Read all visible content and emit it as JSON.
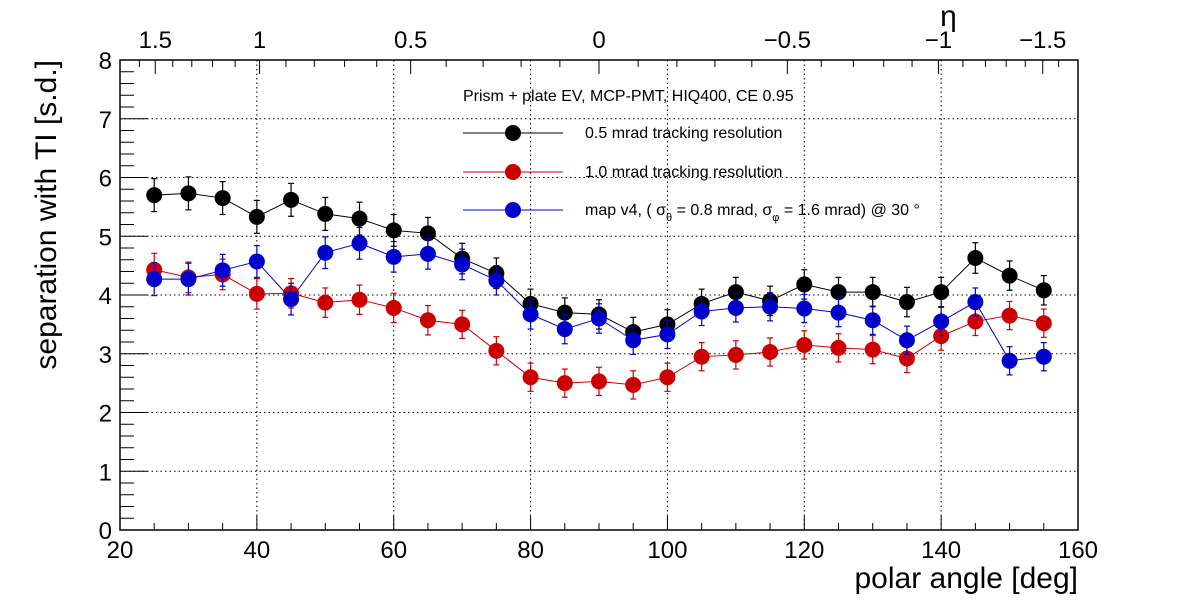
{
  "chart_data": {
    "type": "scatter",
    "title": "",
    "xlabel": "polar angle [deg]",
    "ylabel": "separation with TI [s.d.]",
    "secondary_xlabel": "η",
    "xlim": [
      20,
      160
    ],
    "ylim": [
      0,
      8
    ],
    "grid": true,
    "x_ticks": [
      20,
      40,
      60,
      80,
      100,
      120,
      140,
      160
    ],
    "y_ticks": [
      0,
      1,
      2,
      3,
      4,
      5,
      6,
      7,
      8
    ],
    "eta_ticks": [
      {
        "label": "1.5",
        "eta": 1.5
      },
      {
        "label": "1",
        "eta": 1.0
      },
      {
        "label": "0.5",
        "eta": 0.5
      },
      {
        "label": "0",
        "eta": 0.0
      },
      {
        "label": "−0.5",
        "eta": -0.5
      },
      {
        "label": "−1",
        "eta": -1.0
      },
      {
        "label": "−1.5",
        "eta": -1.5
      }
    ],
    "legend_header": "Prism + plate EV, MCP-PMT, HIQ400, CE 0.95",
    "legend_position": "top-right",
    "x": [
      25,
      30,
      35,
      40,
      45,
      50,
      55,
      60,
      65,
      70,
      75,
      80,
      85,
      90,
      95,
      100,
      105,
      110,
      115,
      120,
      125,
      130,
      135,
      140,
      145,
      150,
      155
    ],
    "series": [
      {
        "name": "0.5 mrad tracking resolution",
        "legend_label": "0.5 mrad tracking resolution",
        "color": "#000000",
        "values": [
          5.7,
          5.73,
          5.65,
          5.33,
          5.62,
          5.38,
          5.3,
          5.1,
          5.05,
          4.62,
          4.37,
          3.85,
          3.7,
          3.67,
          3.37,
          3.5,
          3.85,
          4.05,
          3.9,
          4.18,
          4.05,
          4.05,
          3.88,
          4.05,
          4.63,
          4.33,
          4.08
        ],
        "errors": [
          0.28,
          0.28,
          0.28,
          0.28,
          0.28,
          0.28,
          0.28,
          0.27,
          0.27,
          0.26,
          0.26,
          0.25,
          0.25,
          0.25,
          0.25,
          0.25,
          0.25,
          0.25,
          0.25,
          0.25,
          0.25,
          0.25,
          0.25,
          0.25,
          0.26,
          0.25,
          0.25
        ]
      },
      {
        "name": "1.0 mrad tracking resolution",
        "legend_label": "1.0 mrad tracking resolution",
        "color": "#cc0000",
        "values": [
          4.43,
          4.3,
          4.35,
          4.02,
          4.03,
          3.87,
          3.92,
          3.78,
          3.57,
          3.5,
          3.05,
          2.6,
          2.5,
          2.53,
          2.47,
          2.6,
          2.95,
          2.98,
          3.03,
          3.15,
          3.1,
          3.07,
          2.92,
          3.3,
          3.55,
          3.65,
          3.52
        ],
        "errors": [
          0.28,
          0.26,
          0.26,
          0.26,
          0.25,
          0.25,
          0.25,
          0.25,
          0.25,
          0.24,
          0.24,
          0.24,
          0.24,
          0.24,
          0.24,
          0.24,
          0.24,
          0.24,
          0.24,
          0.24,
          0.24,
          0.24,
          0.24,
          0.24,
          0.24,
          0.24,
          0.24
        ]
      },
      {
        "name": "map v4",
        "legend_label": "map v4, ( σ_θ = 0.8 mrad,    σ_φ = 1.6 mrad) @ 30 °",
        "legend_parts": [
          "map v4, ( σ",
          "θ",
          " = 0.8 mrad,    σ",
          "φ",
          " = 1.6 mrad) @ 30 °"
        ],
        "color": "#0000cc",
        "values": [
          4.27,
          4.27,
          4.42,
          4.57,
          3.93,
          4.72,
          4.88,
          4.65,
          4.7,
          4.52,
          4.25,
          3.67,
          3.42,
          3.6,
          3.23,
          3.33,
          3.72,
          3.78,
          3.8,
          3.77,
          3.7,
          3.57,
          3.23,
          3.55,
          3.88,
          2.88,
          2.95
        ],
        "errors": [
          0.28,
          0.27,
          0.27,
          0.27,
          0.27,
          0.27,
          0.27,
          0.26,
          0.26,
          0.26,
          0.25,
          0.25,
          0.25,
          0.25,
          0.24,
          0.24,
          0.24,
          0.24,
          0.24,
          0.24,
          0.24,
          0.24,
          0.24,
          0.24,
          0.24,
          0.24,
          0.24
        ]
      }
    ]
  }
}
